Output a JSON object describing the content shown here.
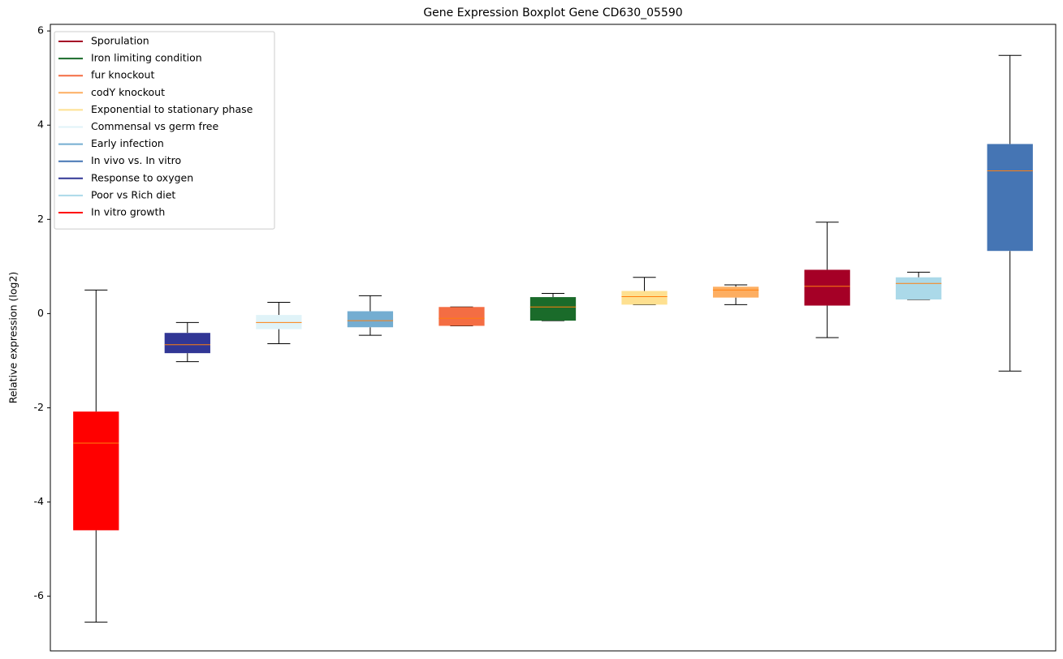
{
  "chart_data": {
    "type": "box",
    "title": "Gene Expression Boxplot Gene CD630_05590",
    "y_label": "Relative expression (log2)",
    "ylim": [
      -7.16,
      6.14
    ],
    "yticks": [
      -6,
      -4,
      -2,
      0,
      2,
      4,
      6
    ],
    "xlim": [
      0.5,
      11.5
    ],
    "median_color": "#ff7f0e",
    "legend": "upper left",
    "series": [
      {
        "name": "Sporulation",
        "color": "#a50026",
        "x": 9,
        "whislo": -0.51,
        "q1": 0.17,
        "med": 0.58,
        "q3": 0.93,
        "whishi": 1.94
      },
      {
        "name": "Iron limiting condition",
        "color": "#1a6b2a",
        "x": 6,
        "whislo": -0.15,
        "q1": -0.15,
        "med": 0.14,
        "q3": 0.35,
        "whishi": 0.43
      },
      {
        "name": "fur knockout",
        "color": "#f46d43",
        "x": 5,
        "whislo": -0.26,
        "q1": -0.26,
        "med": -0.1,
        "q3": 0.14,
        "whishi": 0.14
      },
      {
        "name": "codY knockout",
        "color": "#fdae61",
        "x": 8,
        "whislo": 0.19,
        "q1": 0.34,
        "med": 0.5,
        "q3": 0.57,
        "whishi": 0.61
      },
      {
        "name": "Exponential to stationary phase",
        "color": "#fee090",
        "x": 7,
        "whislo": 0.19,
        "q1": 0.19,
        "med": 0.36,
        "q3": 0.48,
        "whishi": 0.77
      },
      {
        "name": "Commensal vs germ free",
        "color": "#e0f3f8",
        "x": 3,
        "whislo": -0.64,
        "q1": -0.33,
        "med": -0.19,
        "q3": -0.03,
        "whishi": 0.24
      },
      {
        "name": "Early infection",
        "color": "#74add1",
        "x": 4,
        "whislo": -0.46,
        "q1": -0.29,
        "med": -0.15,
        "q3": 0.05,
        "whishi": 0.38
      },
      {
        "name": "In vivo vs. In vitro",
        "color": "#4575b4",
        "x": 11,
        "whislo": -1.22,
        "q1": 1.33,
        "med": 3.03,
        "q3": 3.6,
        "whishi": 5.48
      },
      {
        "name": "Response to oxygen",
        "color": "#313695",
        "x": 2,
        "whislo": -1.02,
        "q1": -0.84,
        "med": -0.66,
        "q3": -0.41,
        "whishi": -0.19
      },
      {
        "name": "Poor vs Rich diet",
        "color": "#abd9e9",
        "x": 10,
        "whislo": 0.3,
        "q1": 0.3,
        "med": 0.64,
        "q3": 0.77,
        "whishi": 0.88
      },
      {
        "name": "In vitro growth",
        "color": "#ff0000",
        "x": 1,
        "whislo": -6.55,
        "q1": -4.6,
        "med": -2.75,
        "q3": -2.08,
        "whishi": 0.5
      }
    ]
  }
}
